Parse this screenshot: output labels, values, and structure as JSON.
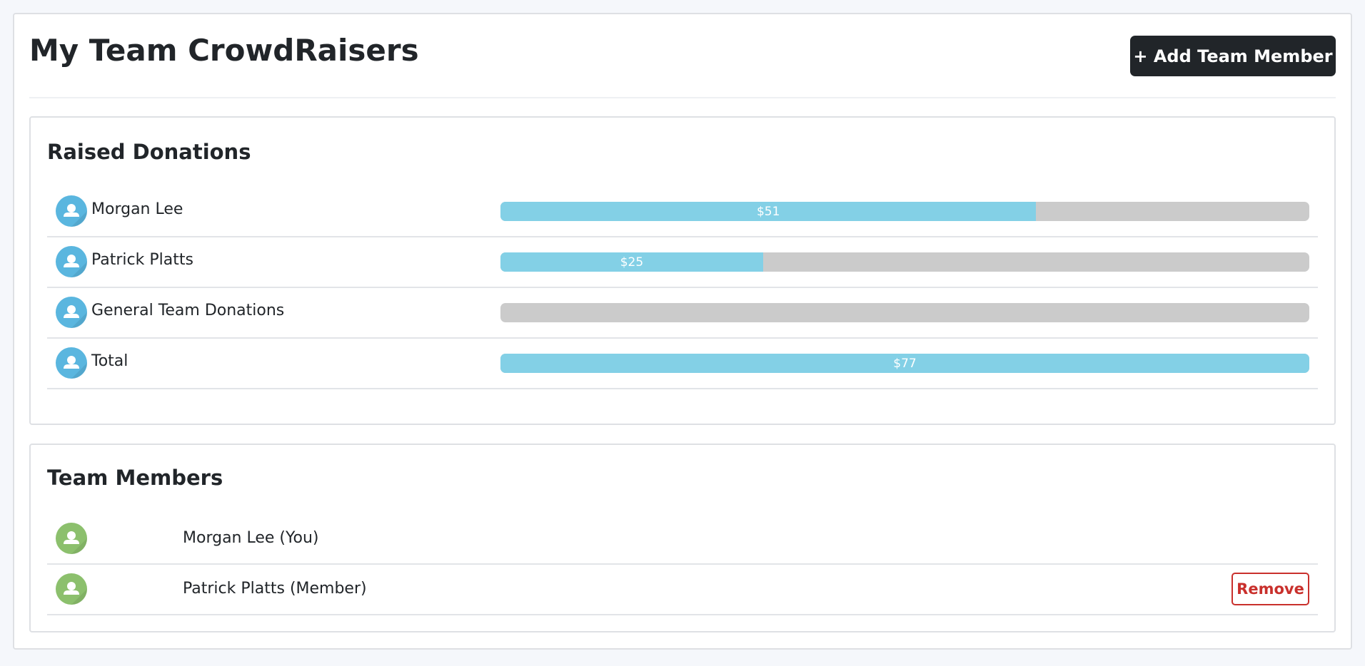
{
  "header": {
    "title": "My Team CrowdRaisers",
    "button": "+ Add Team Member"
  },
  "raised": {
    "title": "Raised Donations",
    "rows": [
      {
        "name": "Morgan Lee",
        "value": 51,
        "value_label": "$51"
      },
      {
        "name": "Patrick Platts",
        "value": 25,
        "value_label": "$25"
      },
      {
        "name": "General Team Donations",
        "value": 0
      },
      {
        "name": "Total",
        "value": 77,
        "value_label": "$77"
      }
    ]
  },
  "members": {
    "title": "Team Members",
    "rows": [
      {
        "name": "Morgan Lee (You)"
      },
      {
        "name": "Patrick Platts (Member)",
        "action": "Remove"
      }
    ]
  }
}
